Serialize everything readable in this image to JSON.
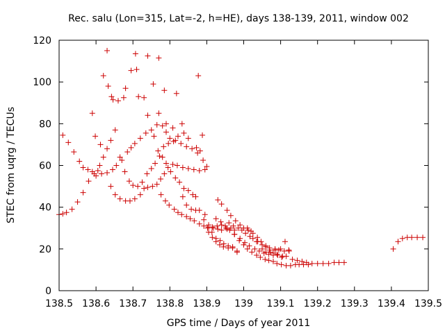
{
  "chart_data": {
    "type": "scatter",
    "title": "Rec. salu (Lon=315, Lat=-2, h=HE), days 138-139, 2011, window 002",
    "xlabel": "GPS time / Days of year 2011",
    "ylabel": "STEC from uqrg / TECUs",
    "xlim": [
      138.5,
      139.5
    ],
    "ylim": [
      0,
      120
    ],
    "xticks": [
      138.5,
      138.6,
      138.7,
      138.8,
      138.9,
      139.0,
      139.1,
      139.2,
      139.3,
      139.4,
      139.5
    ],
    "xtick_labels": [
      "138.5",
      "138.6",
      "138.7",
      "138.8",
      "138.9",
      "139",
      "139.1",
      "139.2",
      "139.3",
      "139.4",
      "139.5"
    ],
    "yticks": [
      0,
      20,
      40,
      60,
      80,
      100,
      120
    ],
    "ytick_labels": [
      "0",
      "20",
      "40",
      "60",
      "80",
      "100",
      "120"
    ],
    "grid": false,
    "legend": false,
    "marker": "+",
    "color": "#cc0000",
    "series": [
      {
        "name": "STEC",
        "points": [
          [
            138.5,
            36.5
          ],
          [
            138.51,
            36.8
          ],
          [
            138.52,
            37.5
          ],
          [
            138.535,
            39.0
          ],
          [
            138.55,
            42.5
          ],
          [
            138.565,
            47.0
          ],
          [
            138.58,
            52.5
          ],
          [
            138.595,
            56.0
          ],
          [
            138.605,
            57.5
          ],
          [
            138.615,
            56.0
          ],
          [
            138.63,
            56.5
          ],
          [
            138.645,
            58.0
          ],
          [
            138.655,
            60.0
          ],
          [
            138.67,
            62.5
          ],
          [
            138.685,
            66.5
          ],
          [
            138.695,
            68.5
          ],
          [
            138.705,
            70.5
          ],
          [
            138.72,
            73.0
          ],
          [
            138.735,
            75.5
          ],
          [
            138.75,
            77.0
          ],
          [
            138.765,
            79.5
          ],
          [
            138.78,
            79.0
          ],
          [
            138.79,
            76.0
          ],
          [
            138.8,
            73.0
          ],
          [
            138.815,
            72.0
          ],
          [
            138.83,
            70.5
          ],
          [
            138.845,
            69.0
          ],
          [
            138.86,
            68.0
          ],
          [
            138.875,
            66.0
          ],
          [
            138.89,
            62.5
          ],
          [
            138.9,
            59.5
          ],
          [
            138.51,
            74.5
          ],
          [
            138.525,
            71.0
          ],
          [
            138.54,
            66.5
          ],
          [
            138.555,
            62.0
          ],
          [
            138.565,
            59.0
          ],
          [
            138.578,
            58.0
          ],
          [
            138.59,
            57.0
          ],
          [
            138.6,
            55.0
          ],
          [
            138.61,
            60.0
          ],
          [
            138.62,
            64.0
          ],
          [
            138.63,
            68.0
          ],
          [
            138.64,
            72.0
          ],
          [
            138.652,
            77.0
          ],
          [
            138.59,
            85.0
          ],
          [
            138.598,
            74.0
          ],
          [
            138.612,
            70.0
          ],
          [
            138.62,
            103.0
          ],
          [
            138.63,
            115.0
          ],
          [
            138.633,
            98.0
          ],
          [
            138.642,
            93.0
          ],
          [
            138.646,
            91.5
          ],
          [
            138.66,
            91.0
          ],
          [
            138.675,
            92.5
          ],
          [
            138.68,
            97.0
          ],
          [
            138.695,
            105.5
          ],
          [
            138.71,
            106.0
          ],
          [
            138.707,
            113.5
          ],
          [
            138.715,
            93.0
          ],
          [
            138.73,
            92.5
          ],
          [
            138.74,
            112.5
          ],
          [
            138.755,
            99.0
          ],
          [
            138.77,
            111.5
          ],
          [
            138.77,
            85.0
          ],
          [
            138.785,
            96.0
          ],
          [
            138.79,
            80.0
          ],
          [
            138.808,
            78.0
          ],
          [
            138.818,
            94.5
          ],
          [
            138.833,
            80.0
          ],
          [
            138.877,
            103.0
          ],
          [
            138.888,
            74.5
          ],
          [
            138.64,
            50.0
          ],
          [
            138.652,
            46.0
          ],
          [
            138.665,
            44.0
          ],
          [
            138.68,
            43.0
          ],
          [
            138.692,
            43.0
          ],
          [
            138.705,
            44.0
          ],
          [
            138.72,
            46.0
          ],
          [
            138.73,
            49.0
          ],
          [
            138.74,
            49.5
          ],
          [
            138.753,
            50.0
          ],
          [
            138.765,
            51.0
          ],
          [
            138.775,
            53.5
          ],
          [
            138.785,
            56.0
          ],
          [
            138.795,
            59.0
          ],
          [
            138.808,
            60.5
          ],
          [
            138.82,
            60.0
          ],
          [
            138.835,
            59.0
          ],
          [
            138.85,
            58.5
          ],
          [
            138.865,
            58.0
          ],
          [
            138.88,
            57.5
          ],
          [
            138.895,
            58.0
          ],
          [
            138.665,
            64.0
          ],
          [
            138.678,
            57.0
          ],
          [
            138.69,
            52.5
          ],
          [
            138.7,
            50.5
          ],
          [
            138.713,
            50.0
          ],
          [
            138.725,
            52.0
          ],
          [
            138.738,
            56.0
          ],
          [
            138.75,
            58.5
          ],
          [
            138.76,
            61.0
          ],
          [
            138.772,
            64.5
          ],
          [
            138.783,
            69.0
          ],
          [
            138.796,
            70.5
          ],
          [
            138.81,
            71.5
          ],
          [
            138.822,
            74.0
          ],
          [
            138.838,
            75.5
          ],
          [
            138.85,
            73.0
          ],
          [
            138.872,
            68.5
          ],
          [
            138.882,
            67.0
          ],
          [
            138.74,
            84.0
          ],
          [
            138.757,
            74.0
          ],
          [
            138.768,
            67.0
          ],
          [
            138.78,
            64.0
          ],
          [
            138.79,
            61.0
          ],
          [
            138.802,
            57.0
          ],
          [
            138.815,
            54.0
          ],
          [
            138.826,
            52.0
          ],
          [
            138.838,
            49.0
          ],
          [
            138.85,
            48.0
          ],
          [
            138.862,
            46.0
          ],
          [
            138.87,
            45.0
          ],
          [
            138.776,
            46.0
          ],
          [
            138.788,
            43.0
          ],
          [
            138.798,
            41.0
          ],
          [
            138.812,
            39.0
          ],
          [
            138.822,
            37.5
          ],
          [
            138.832,
            36.5
          ],
          [
            138.845,
            35.5
          ],
          [
            138.855,
            34.5
          ],
          [
            138.866,
            33.5
          ],
          [
            138.88,
            32.0
          ],
          [
            138.892,
            31.0
          ],
          [
            138.905,
            30.5
          ],
          [
            138.918,
            30.0
          ],
          [
            138.93,
            29.5
          ],
          [
            138.94,
            29.0
          ],
          [
            138.955,
            29.5
          ],
          [
            138.965,
            30.0
          ],
          [
            138.975,
            29.0
          ],
          [
            138.835,
            45.0
          ],
          [
            138.845,
            41.0
          ],
          [
            138.858,
            39.0
          ],
          [
            138.87,
            38.5
          ],
          [
            138.88,
            38.5
          ],
          [
            138.892,
            34.0
          ],
          [
            138.902,
            30.0
          ],
          [
            138.914,
            28.0
          ],
          [
            138.925,
            25.0
          ],
          [
            138.936,
            24.0
          ],
          [
            138.946,
            22.5
          ],
          [
            138.958,
            21.5
          ],
          [
            138.97,
            21.0
          ],
          [
            138.982,
            19.0
          ],
          [
            138.895,
            36.5
          ],
          [
            138.905,
            28.0
          ],
          [
            138.915,
            25.5
          ],
          [
            138.925,
            23.5
          ],
          [
            138.935,
            22.0
          ],
          [
            138.945,
            21.0
          ],
          [
            138.958,
            20.5
          ],
          [
            138.97,
            20.5
          ],
          [
            138.982,
            18.5
          ],
          [
            138.905,
            31.5
          ],
          [
            138.915,
            30.5
          ],
          [
            138.928,
            31.0
          ],
          [
            138.94,
            31.5
          ],
          [
            138.952,
            30.0
          ],
          [
            138.96,
            32.5
          ],
          [
            138.972,
            31.0
          ],
          [
            138.985,
            30.0
          ],
          [
            138.995,
            29.0
          ],
          [
            139.005,
            27.5
          ],
          [
            139.017,
            26.0
          ],
          [
            139.025,
            25.0
          ],
          [
            139.038,
            23.5
          ],
          [
            139.05,
            22.0
          ],
          [
            139.06,
            21.0
          ],
          [
            139.07,
            20.5
          ],
          [
            139.085,
            20.0
          ],
          [
            139.095,
            19.5
          ],
          [
            139.11,
            19.0
          ],
          [
            139.123,
            19.0
          ],
          [
            138.93,
            43.5
          ],
          [
            138.94,
            41.5
          ],
          [
            138.955,
            38.5
          ],
          [
            138.965,
            36.0
          ],
          [
            138.978,
            33.5
          ],
          [
            138.99,
            31.5
          ],
          [
            139.0,
            30.0
          ],
          [
            139.012,
            29.0
          ],
          [
            139.025,
            27.5
          ],
          [
            139.037,
            25.5
          ],
          [
            139.047,
            23.5
          ],
          [
            139.06,
            21.5
          ],
          [
            139.07,
            19.5
          ],
          [
            139.08,
            18.0
          ],
          [
            139.09,
            17.5
          ],
          [
            139.103,
            16.0
          ],
          [
            138.925,
            34.5
          ],
          [
            138.938,
            33.0
          ],
          [
            138.95,
            31.0
          ],
          [
            138.962,
            29.0
          ],
          [
            138.975,
            27.0
          ],
          [
            138.99,
            25.0
          ],
          [
            139.003,
            23.0
          ],
          [
            139.015,
            21.5
          ],
          [
            139.03,
            20.0
          ],
          [
            139.042,
            19.0
          ],
          [
            139.055,
            18.0
          ],
          [
            139.068,
            17.5
          ],
          [
            139.08,
            17.0
          ],
          [
            139.092,
            17.0
          ],
          [
            139.105,
            16.5
          ],
          [
            139.115,
            16.5
          ],
          [
            138.975,
            27.0
          ],
          [
            138.988,
            24.0
          ],
          [
            139.0,
            22.0
          ],
          [
            139.01,
            20.0
          ],
          [
            139.022,
            18.5
          ],
          [
            139.035,
            17.0
          ],
          [
            139.045,
            16.0
          ],
          [
            139.058,
            15.0
          ],
          [
            139.068,
            14.5
          ],
          [
            139.08,
            14.0
          ],
          [
            139.09,
            13.0
          ],
          [
            139.102,
            12.5
          ],
          [
            139.115,
            12.0
          ],
          [
            139.127,
            12.0
          ],
          [
            139.14,
            12.5
          ],
          [
            139.15,
            12.5
          ],
          [
            139.162,
            12.5
          ],
          [
            139.175,
            12.5
          ],
          [
            139.01,
            30.0
          ],
          [
            139.02,
            28.5
          ],
          [
            139.035,
            23.5
          ],
          [
            139.05,
            20.0
          ],
          [
            139.06,
            18.5
          ],
          [
            139.072,
            18.5
          ],
          [
            139.085,
            19.5
          ],
          [
            139.1,
            20.0
          ],
          [
            139.112,
            23.5
          ],
          [
            139.122,
            19.5
          ],
          [
            139.132,
            15.0
          ],
          [
            139.145,
            14.5
          ],
          [
            139.158,
            14.0
          ],
          [
            139.17,
            13.5
          ],
          [
            139.185,
            13.0
          ],
          [
            139.2,
            13.0
          ],
          [
            139.215,
            13.0
          ],
          [
            139.23,
            13.0
          ],
          [
            139.245,
            13.5
          ],
          [
            139.258,
            13.5
          ],
          [
            139.272,
            13.5
          ],
          [
            139.405,
            20.0
          ],
          [
            139.418,
            23.5
          ],
          [
            139.43,
            25.0
          ],
          [
            139.443,
            25.5
          ],
          [
            139.455,
            25.5
          ],
          [
            139.47,
            25.5
          ],
          [
            139.485,
            25.5
          ]
        ]
      }
    ]
  }
}
